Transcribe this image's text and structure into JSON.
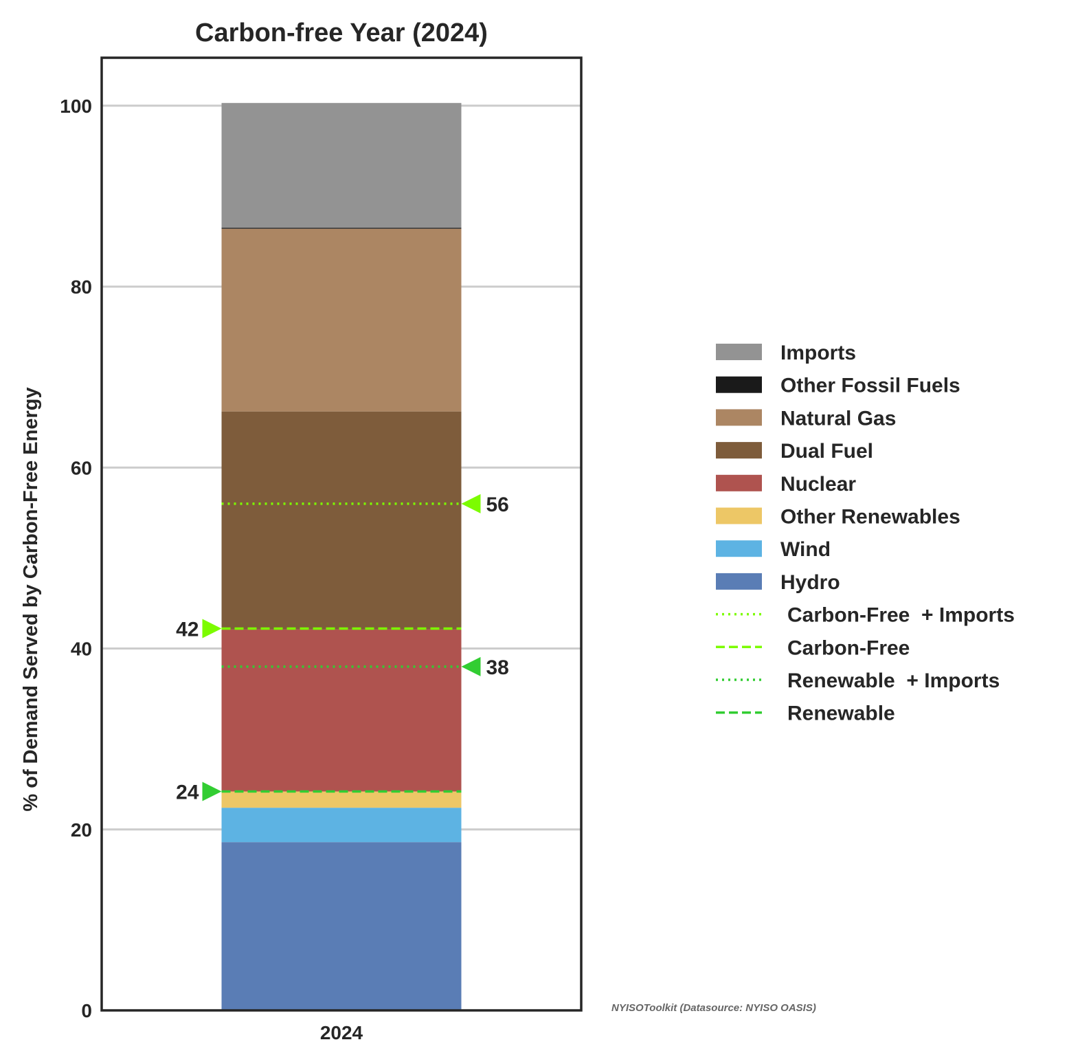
{
  "chart_data": {
    "type": "bar",
    "title": "Carbon-free Year (2024)",
    "xlabel": "",
    "ylabel": "% of Demand Served by Carbon-Free Energy",
    "categories": [
      "2024"
    ],
    "ylim": [
      0,
      105.3
    ],
    "yticks": [
      0,
      20,
      40,
      60,
      80,
      100
    ],
    "ytick_labels": [
      "0",
      "20",
      "40",
      "60",
      "80",
      "100"
    ],
    "stacked": true,
    "grid": "horizontal",
    "legend_position": "right",
    "series": [
      {
        "name": "Hydro",
        "values": [
          18.6
        ],
        "color": "#5a7db5"
      },
      {
        "name": "Wind",
        "values": [
          3.8
        ],
        "color": "#5db3e3"
      },
      {
        "name": "Other Renewables",
        "values": [
          1.8
        ],
        "color": "#edc766"
      },
      {
        "name": "Nuclear",
        "values": [
          17.9
        ],
        "color": "#af534f"
      },
      {
        "name": "Dual Fuel",
        "values": [
          24.1
        ],
        "color": "#7e5c3b"
      },
      {
        "name": "Natural Gas",
        "values": [
          20.2
        ],
        "color": "#ac8663"
      },
      {
        "name": "Other Fossil Fuels",
        "values": [
          0.1
        ],
        "color": "#1a1a1a"
      },
      {
        "name": "Imports",
        "values": [
          13.8
        ],
        "color": "#939393"
      }
    ],
    "reference_lines": [
      {
        "name": "Carbon-Free  + Imports",
        "value": 56,
        "label": "56",
        "style": "dotted",
        "color": "#7cfc00",
        "marker_side": "right"
      },
      {
        "name": "Carbon-Free",
        "value": 42.2,
        "label": "42",
        "style": "dashed",
        "color": "#7cfc00",
        "marker_side": "left"
      },
      {
        "name": "Renewable  + Imports",
        "value": 38,
        "label": "38",
        "style": "dotted",
        "color": "#32cd32",
        "marker_side": "right"
      },
      {
        "name": "Renewable",
        "value": 24.2,
        "label": "24",
        "style": "dashed",
        "color": "#32cd32",
        "marker_side": "left"
      }
    ],
    "legend_order": [
      "Imports",
      "Other Fossil Fuels",
      "Natural Gas",
      "Dual Fuel",
      "Nuclear",
      "Other Renewables",
      "Wind",
      "Hydro",
      "Carbon-Free  + Imports",
      "Carbon-Free",
      "Renewable  + Imports",
      "Renewable"
    ],
    "credit": "NYISOToolkit (Datasource: NYISO OASIS)"
  }
}
